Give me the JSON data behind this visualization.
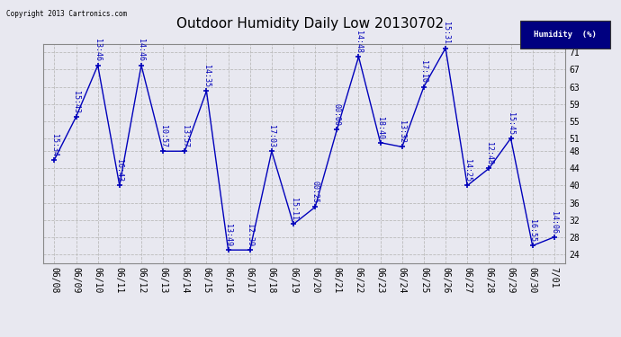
{
  "title": "Outdoor Humidity Daily Low 20130702",
  "copyright": "Copyright 2013 Cartronics.com",
  "legend_label": "Humidity  (%)",
  "x_labels": [
    "06/08",
    "06/09",
    "06/10",
    "06/11",
    "06/12",
    "06/13",
    "06/14",
    "06/15",
    "06/16",
    "06/17",
    "06/18",
    "06/19",
    "06/20",
    "06/21",
    "06/22",
    "06/23",
    "06/24",
    "06/25",
    "06/26",
    "06/27",
    "06/28",
    "06/29",
    "06/30",
    "7/01"
  ],
  "x_indices": [
    0,
    1,
    2,
    3,
    4,
    5,
    6,
    7,
    8,
    9,
    10,
    11,
    12,
    13,
    14,
    15,
    16,
    17,
    18,
    19,
    20,
    21,
    22,
    23
  ],
  "y_values": [
    46,
    56,
    68,
    40,
    68,
    48,
    48,
    62,
    25,
    25,
    48,
    31,
    35,
    53,
    70,
    50,
    49,
    63,
    72,
    40,
    44,
    51,
    26,
    28
  ],
  "point_labels": [
    "15:34",
    "15:43",
    "13:46",
    "16:43",
    "14:46",
    "10:57",
    "13:57",
    "14:35",
    "13:49",
    "12:39",
    "17:03",
    "15:11",
    "00:25",
    "00:00",
    "14:48",
    "18:40",
    "13:32",
    "17:10",
    "15:31",
    "14:25",
    "12:48",
    "15:45",
    "16:55",
    "14:06"
  ],
  "ylim": [
    22,
    73
  ],
  "yticks": [
    24,
    28,
    32,
    36,
    40,
    44,
    48,
    51,
    55,
    59,
    63,
    67,
    71
  ],
  "line_color": "#0000bb",
  "marker_color": "#0000bb",
  "grid_color": "#bbbbbb",
  "bg_color": "#e8e8f0",
  "title_fontsize": 11,
  "label_fontsize": 6,
  "axis_fontsize": 7,
  "legend_bg": "#000080",
  "legend_fg": "#ffffff"
}
